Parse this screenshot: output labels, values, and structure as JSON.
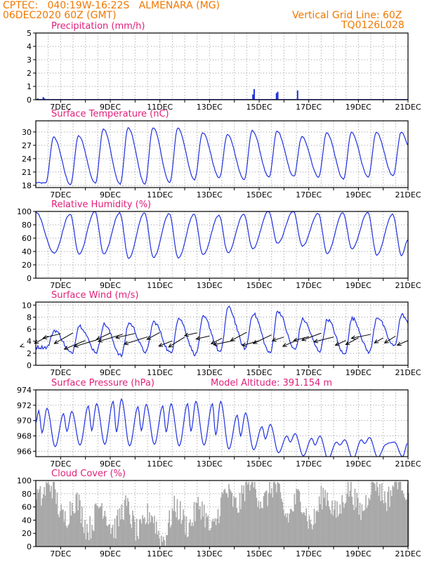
{
  "header": {
    "line1_left": "CPTEC:   040:19W-16:22S   ALMENARA (MG)",
    "line2_left": "06DEC2020 60Z (GMT)",
    "line1_right": "Vertical Grid Line: 60Z",
    "line2_right": "TQ0126L028"
  },
  "colors": {
    "header": "#f07800",
    "title": "#e0207a",
    "line": "#2030e0",
    "cloud": "#a8a8a8",
    "grid": "#9a9a9a"
  },
  "x_tick_labels": [
    "7DEC",
    "9DEC",
    "11DEC",
    "13DEC",
    "15DEC",
    "17DEC",
    "19DEC",
    "21DEC"
  ],
  "panels": {
    "precip": {
      "title": "Precipitation (mm/h)",
      "y_ticks": [
        "0",
        "1",
        "2",
        "3",
        "4",
        "5"
      ]
    },
    "temp": {
      "title": "Surface Temperature (nC)",
      "y_ticks": [
        "18",
        "21",
        "24",
        "27",
        "30"
      ]
    },
    "rh": {
      "title": "Relative Humidity (%)",
      "y_ticks": [
        "0",
        "20",
        "40",
        "60",
        "80",
        "100"
      ]
    },
    "wind": {
      "title": "Surface Wind (m/s)",
      "y_ticks": [
        "0",
        "2",
        "4",
        "6",
        "8",
        "10"
      ]
    },
    "press": {
      "title": "Surface Pressure (hPa)",
      "subtitle": "Model Altitude: 391.154 m",
      "y_ticks": [
        "966",
        "968",
        "970",
        "972",
        "974"
      ]
    },
    "cloud": {
      "title": "Cloud Cover (%)",
      "y_ticks": [
        "0",
        "20",
        "40",
        "60",
        "80",
        "100"
      ]
    }
  },
  "chart_data": [
    {
      "type": "bar",
      "title": "Precipitation (mm/h)",
      "x": [
        6.08,
        6.3,
        6.35,
        8.1,
        14.75,
        14.8,
        15.7,
        15.75,
        16.55
      ],
      "values": [
        0.1,
        0.2,
        0.1,
        0.05,
        0.4,
        0.8,
        0.5,
        0.6,
        0.7
      ],
      "ylim": [
        0,
        5
      ],
      "xlim": [
        6.0,
        21.0
      ]
    },
    {
      "type": "line",
      "title": "Surface Temperature (nC)",
      "series": [
        {
          "kind": "diurnal",
          "min": [
            18.5,
            18.2,
            18.5,
            18.3,
            18.3,
            18.6,
            19.3,
            19.7,
            19.3,
            19.8,
            20.0,
            19.9,
            19.4,
            19.8,
            20.1,
            20.8
          ],
          "max": [
            28.8,
            29.1,
            30.7,
            30.9,
            31.0,
            30.9,
            29.9,
            29.4,
            30.3,
            30.2,
            28.9,
            29.8,
            29.9,
            29.9,
            29.9
          ]
        }
      ],
      "ylim": [
        17.5,
        32.5
      ],
      "xlim": [
        6.0,
        21.0
      ]
    },
    {
      "type": "line",
      "title": "Relative Humidity (%)",
      "series": [
        {
          "kind": "diurnal",
          "min": [
            38,
            36,
            36,
            30,
            31,
            30,
            35,
            38,
            44,
            52,
            48,
            37,
            44,
            35,
            34
          ],
          "max": [
            98,
            96,
            100,
            98,
            98,
            97,
            96,
            94,
            96,
            100,
            100,
            97,
            98,
            98,
            96,
            98
          ]
        }
      ],
      "ylim": [
        0,
        100
      ],
      "xlim": [
        6.0,
        21.0
      ]
    },
    {
      "type": "line",
      "title": "Surface Wind (m/s)",
      "series": [
        {
          "kind": "diurnal",
          "min": [
            3.0,
            2.0,
            2.2,
            1.6,
            2.2,
            2.0,
            1.8,
            2.2,
            2.8,
            2.0,
            2.6,
            2.4,
            1.8,
            2.2,
            3.2,
            2.4
          ],
          "max": [
            5.8,
            6.6,
            6.8,
            7.0,
            7.2,
            7.8,
            8.0,
            9.6,
            8.6,
            9.0,
            7.6,
            7.6,
            7.8,
            8.0,
            8.4
          ]
        }
      ],
      "ylim": [
        0,
        10.5
      ],
      "xlim": [
        6.0,
        21.0
      ]
    },
    {
      "type": "line",
      "title": "Surface Pressure (hPa)",
      "series": [
        {
          "kind": "semidiurnal",
          "high": [
            971.6,
            971.2,
            972.2,
            972.8,
            972.1,
            972.2,
            972.5,
            972.5,
            971.0,
            969.5,
            968.3,
            968.0,
            967.5,
            967.8,
            967.2
          ],
          "low": [
            966.6,
            966.8,
            966.9,
            966.7,
            966.9,
            966.7,
            966.8,
            966.3,
            966.2,
            965.8,
            965.4,
            965.0,
            965.0,
            965.2,
            965.3
          ]
        }
      ],
      "ylim": [
        965.3,
        974.0
      ],
      "xlim": [
        6.0,
        21.0
      ]
    },
    {
      "type": "area",
      "title": "Cloud Cover (%)",
      "series": [
        {
          "kind": "hourly_envelope",
          "days": [
            6,
            7,
            8,
            9,
            10,
            11,
            12,
            13,
            14,
            15,
            16,
            17,
            18,
            19,
            20,
            21
          ],
          "daily_cover": [
            96,
            62,
            45,
            46,
            40,
            27,
            50,
            40,
            78,
            88,
            65,
            52,
            68,
            70,
            90,
            88
          ]
        }
      ],
      "ylim": [
        0,
        100
      ],
      "xlim": [
        6.0,
        21.0
      ]
    }
  ]
}
